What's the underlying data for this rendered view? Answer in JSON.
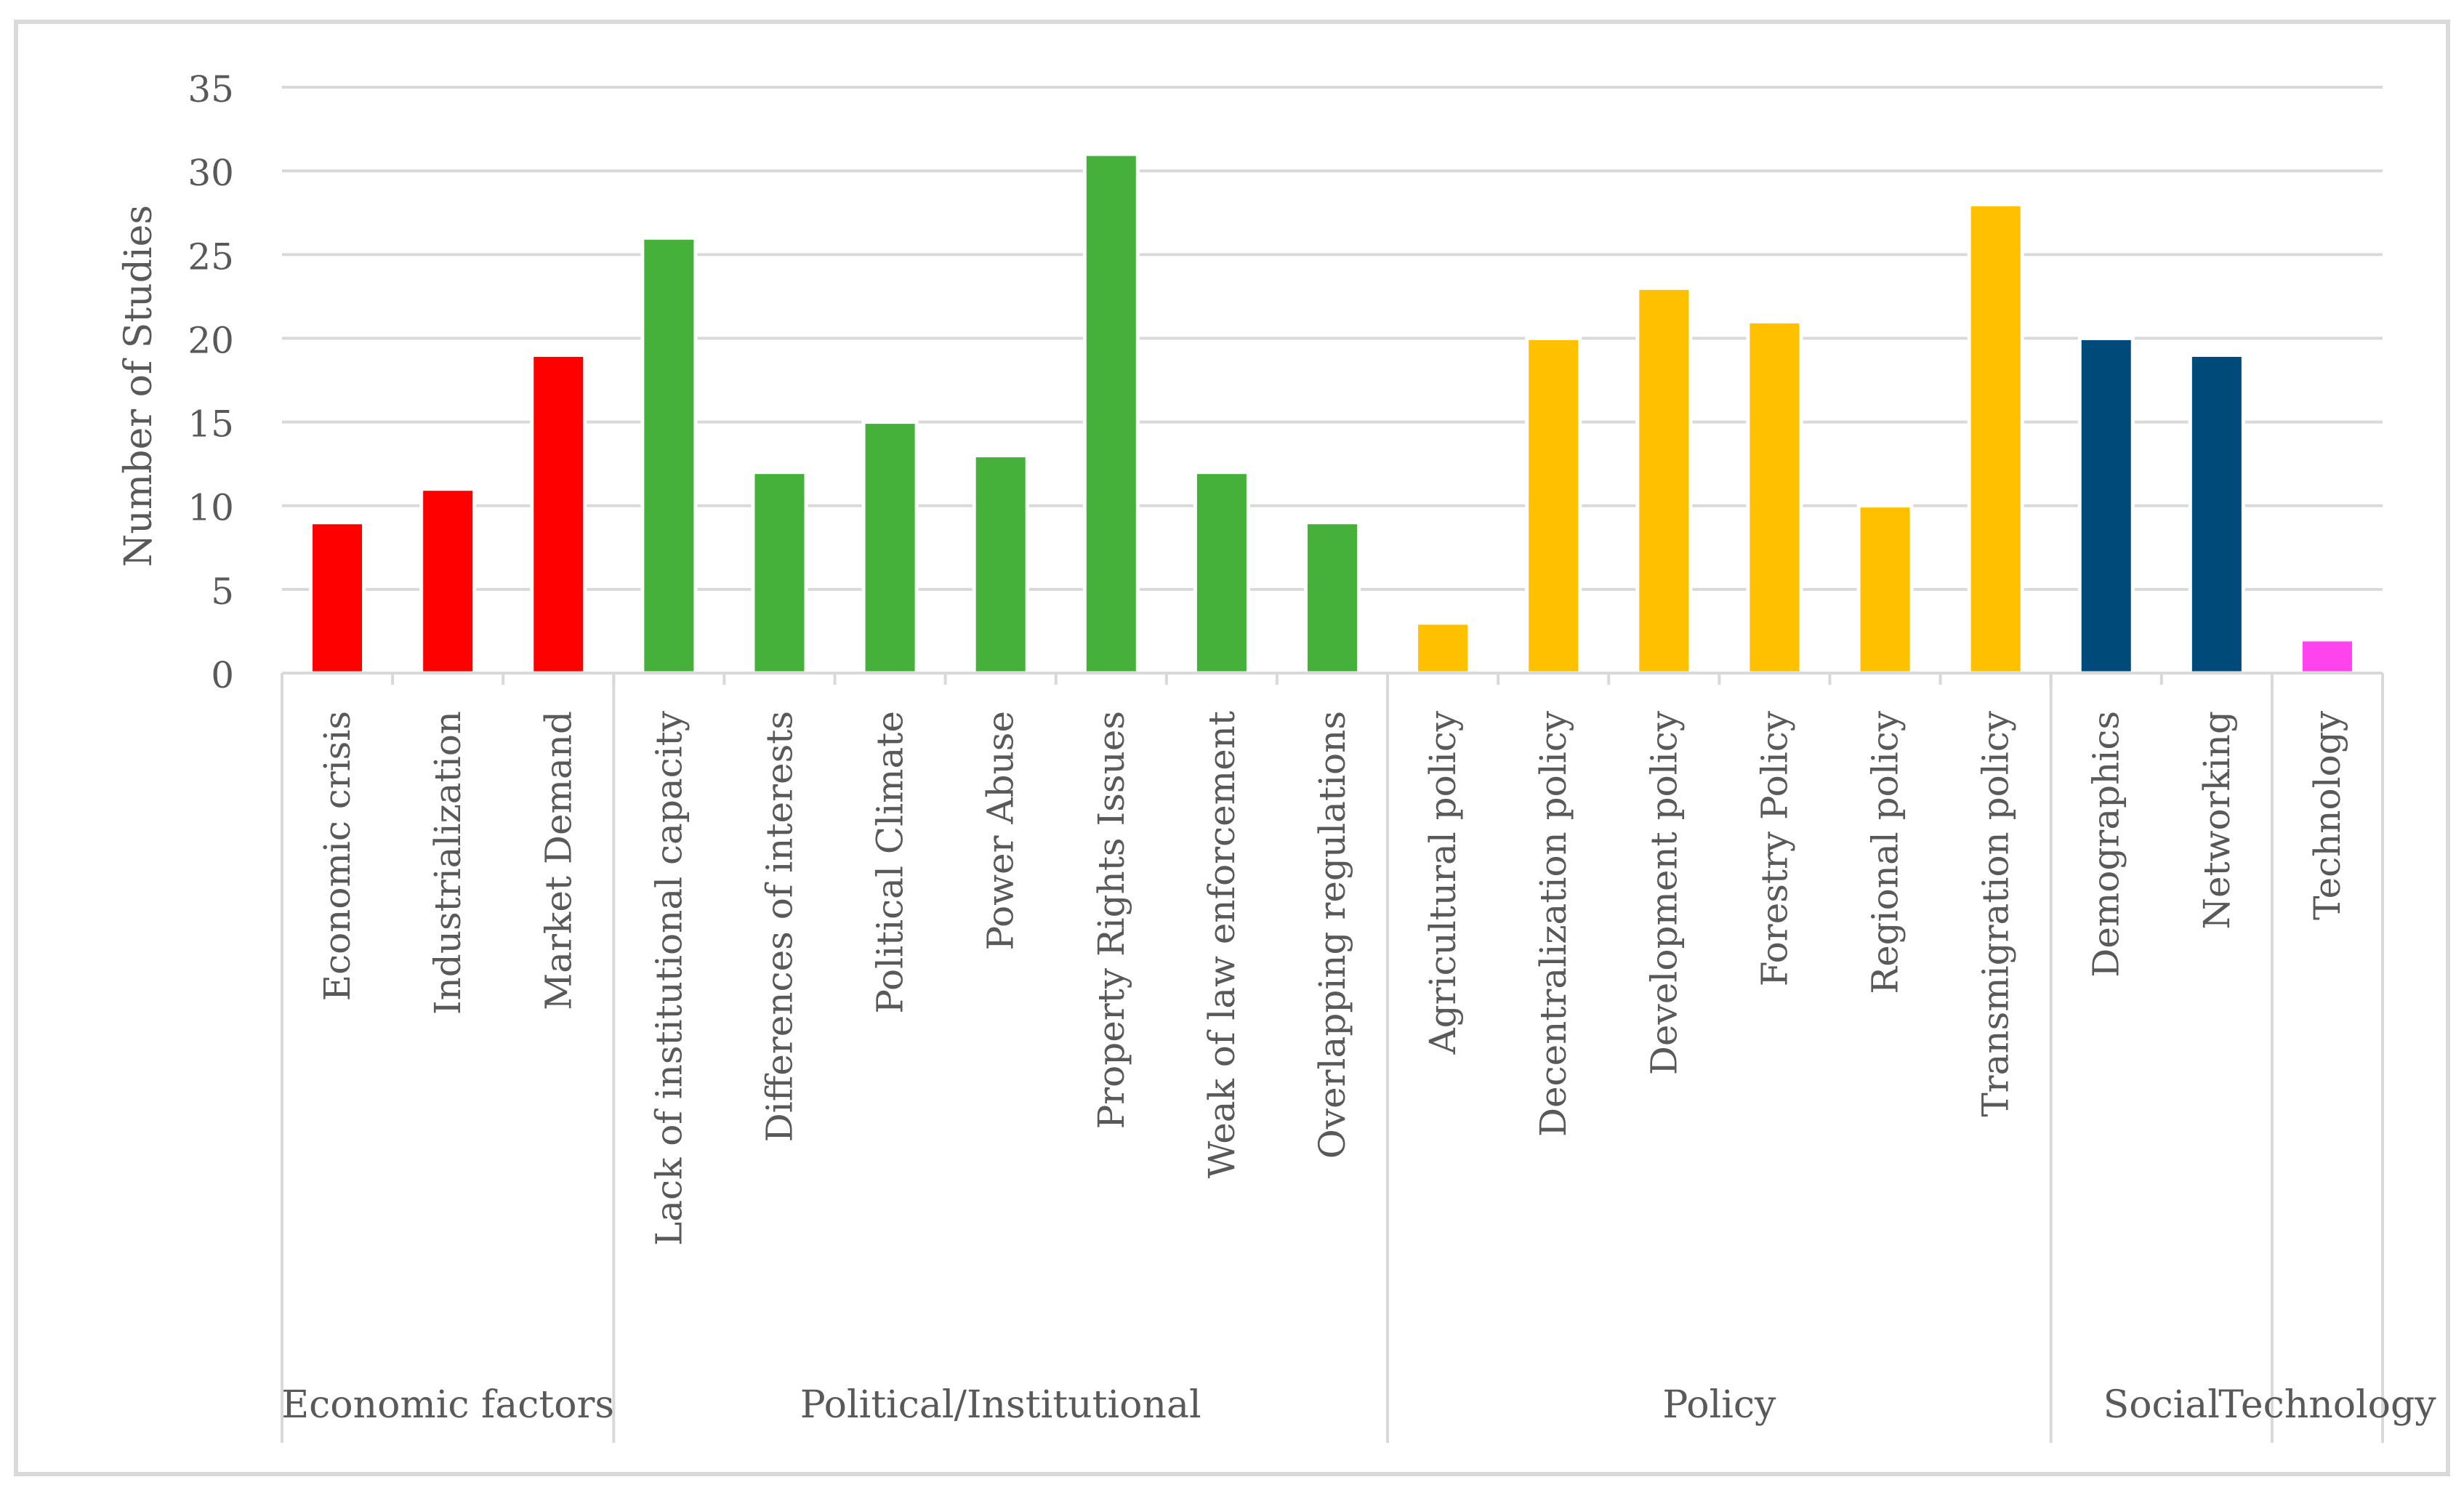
{
  "chart_data": {
    "type": "bar",
    "ylabel": "Number of Studies",
    "xlabel": "",
    "ylim": [
      0,
      35
    ],
    "yticks": [
      0,
      5,
      10,
      15,
      20,
      25,
      30,
      35
    ],
    "grid": true,
    "legend": "none",
    "categories": [
      "Economic crisis",
      "Industrialization",
      "Market Demand",
      "Lack of institutional capacity",
      "Differences of interests",
      "Political Climate",
      "Power Abuse",
      "Property Rights Issues",
      "Weak of law enforcement",
      "Overlapping regulations",
      "Agricultural policy",
      "Decentralization policy",
      "Development policy",
      "Forestry Policy",
      "Regional policy",
      "Transmigration policy",
      "Demographics",
      "Networking",
      "Technology"
    ],
    "values": [
      9,
      11,
      19,
      26,
      12,
      15,
      13,
      31,
      12,
      9,
      3,
      20,
      23,
      21,
      10,
      28,
      20,
      19,
      2
    ],
    "groups": [
      {
        "label": "Economic factors",
        "start": 0,
        "count": 3,
        "color": "#ff0000"
      },
      {
        "label": "Political/Institutional",
        "start": 3,
        "count": 7,
        "color": "#45b03a"
      },
      {
        "label": "Policy",
        "start": 10,
        "count": 6,
        "color": "#ffc000"
      },
      {
        "label": "Social",
        "start": 16,
        "count": 2,
        "color": "#004a7a"
      },
      {
        "label": "Technology",
        "start": 18,
        "count": 1,
        "color": "#ff44ee"
      }
    ]
  }
}
